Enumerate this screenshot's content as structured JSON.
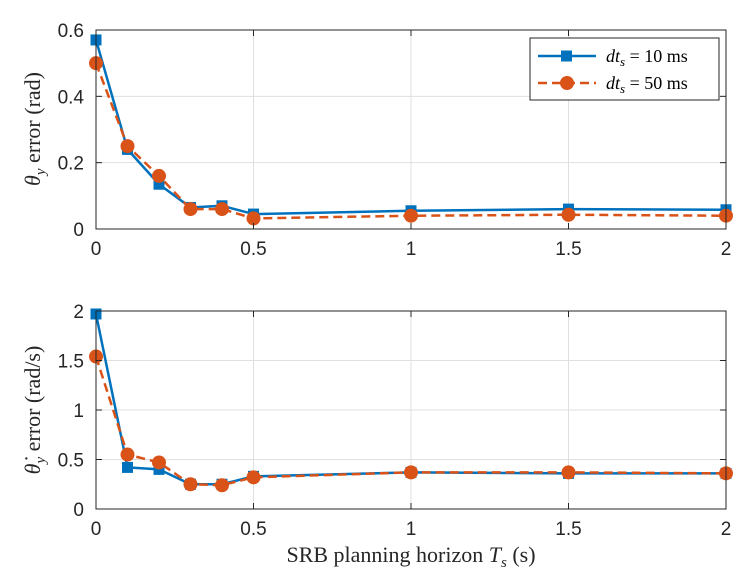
{
  "colors": {
    "series1": "#0072BD",
    "series2": "#D95319",
    "grid": "#dfdfdf",
    "axis": "#262626"
  },
  "chart_data": [
    {
      "type": "line",
      "x": [
        0,
        0.1,
        0.2,
        0.3,
        0.4,
        0.5,
        1,
        1.5,
        2
      ],
      "ylabel_symbol": "θ",
      "ylabel_sub": "y",
      "ylabel_rest": " error (rad)",
      "xlim": [
        0,
        2
      ],
      "ylim": [
        0,
        0.6
      ],
      "xticks": [
        "0",
        "0.5",
        "1",
        "1.5",
        "2"
      ],
      "xtick_values": [
        0,
        0.5,
        1,
        1.5,
        2
      ],
      "yticks": [
        "0",
        "0.2",
        "0.4",
        "0.6"
      ],
      "ytick_values": [
        0,
        0.2,
        0.4,
        0.6
      ],
      "grid": true,
      "legend_position": "top-right",
      "series": [
        {
          "name_prefix": "dt",
          "name_sub": "s",
          "name_suffix": " = 10 ms",
          "style": "solid-square",
          "values": [
            0.57,
            0.24,
            0.135,
            0.065,
            0.07,
            0.045,
            0.055,
            0.06,
            0.058
          ]
        },
        {
          "name_prefix": "dt",
          "name_sub": "s",
          "name_suffix": " = 50 ms",
          "style": "dashed-circle",
          "values": [
            0.5,
            0.25,
            0.16,
            0.06,
            0.06,
            0.032,
            0.04,
            0.043,
            0.04
          ]
        }
      ]
    },
    {
      "type": "line",
      "x": [
        0,
        0.1,
        0.2,
        0.3,
        0.4,
        0.5,
        1,
        1.5,
        2
      ],
      "ylabel_symbol": "θ̇",
      "ylabel_sub": "y",
      "ylabel_rest": " error (rad/s)",
      "xlabel_prefix": "SRB planning horizon ",
      "xlabel_symbol": "T",
      "xlabel_sub": "s",
      "xlabel_suffix": " (s)",
      "xlim": [
        0,
        2
      ],
      "ylim": [
        0,
        2
      ],
      "xticks": [
        "0",
        "0.5",
        "1",
        "1.5",
        "2"
      ],
      "xtick_values": [
        0,
        0.5,
        1,
        1.5,
        2
      ],
      "yticks": [
        "0",
        "0.5",
        "1",
        "1.5",
        "2"
      ],
      "ytick_values": [
        0,
        0.5,
        1,
        1.5,
        2
      ],
      "grid": true,
      "series": [
        {
          "name_prefix": "dt",
          "name_sub": "s",
          "name_suffix": " = 10 ms",
          "style": "solid-square",
          "values": [
            1.97,
            0.42,
            0.4,
            0.25,
            0.25,
            0.33,
            0.37,
            0.36,
            0.36
          ]
        },
        {
          "name_prefix": "dt",
          "name_sub": "s",
          "name_suffix": " = 50 ms",
          "style": "dashed-circle",
          "values": [
            1.54,
            0.55,
            0.47,
            0.25,
            0.24,
            0.32,
            0.37,
            0.37,
            0.36
          ]
        }
      ]
    }
  ]
}
